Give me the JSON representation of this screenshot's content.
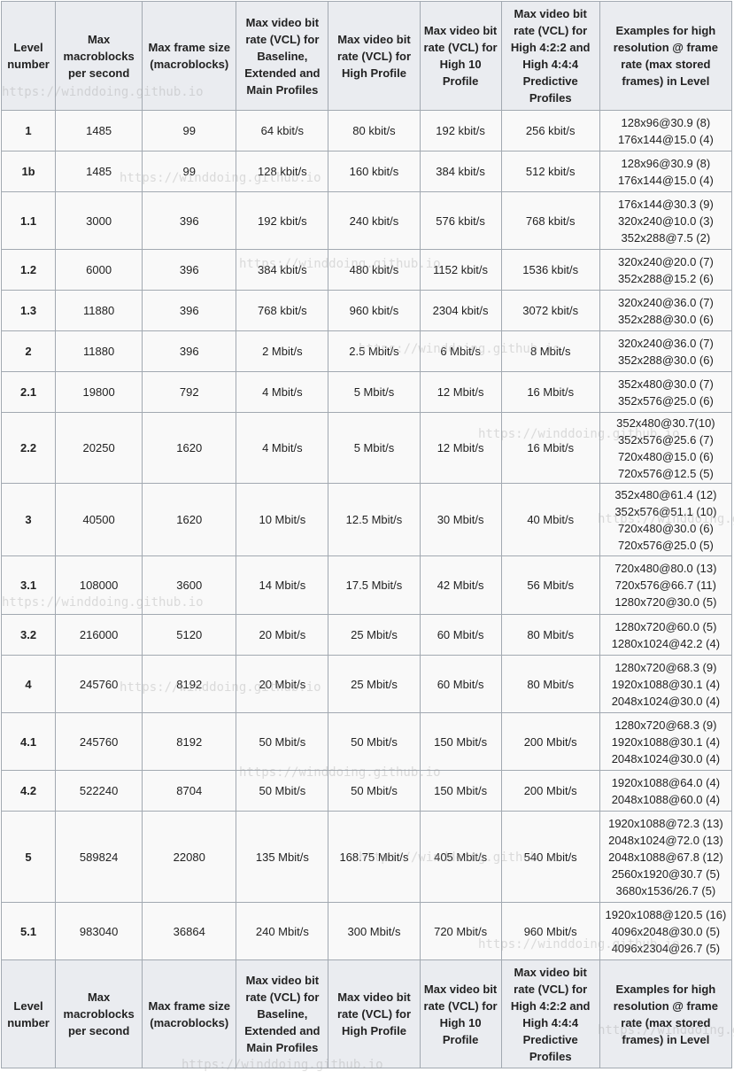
{
  "headers": [
    "Level number",
    "Max macroblocks per second",
    "Max frame size (macroblocks)",
    "Max video bit rate (VCL) for Baseline, Extended and Main Profiles",
    "Max video bit rate (VCL) for High Profile",
    "Max video bit rate (VCL) for High 10 Profile",
    "Max video bit rate (VCL) for High 4:2:2 and High 4:4:4 Predictive Profiles",
    "Examples for high resolution @ frame rate (max stored frames) in Level"
  ],
  "rows": [
    [
      "1",
      "1485",
      "99",
      "64 kbit/s",
      "80 kbit/s",
      "192 kbit/s",
      "256 kbit/s",
      [
        "128x96@30.9 (8)",
        "176x144@15.0 (4)"
      ]
    ],
    [
      "1b",
      "1485",
      "99",
      "128 kbit/s",
      "160 kbit/s",
      "384 kbit/s",
      "512 kbit/s",
      [
        "128x96@30.9 (8)",
        "176x144@15.0 (4)"
      ]
    ],
    [
      "1.1",
      "3000",
      "396",
      "192 kbit/s",
      "240 kbit/s",
      "576 kbit/s",
      "768 kbit/s",
      [
        "176x144@30.3 (9)",
        "320x240@10.0 (3)",
        "352x288@7.5 (2)"
      ]
    ],
    [
      "1.2",
      "6000",
      "396",
      "384 kbit/s",
      "480 kbit/s",
      "1152 kbit/s",
      "1536 kbit/s",
      [
        "320x240@20.0 (7)",
        "352x288@15.2 (6)"
      ]
    ],
    [
      "1.3",
      "11880",
      "396",
      "768 kbit/s",
      "960 kbit/s",
      "2304 kbit/s",
      "3072 kbit/s",
      [
        "320x240@36.0 (7)",
        "352x288@30.0 (6)"
      ]
    ],
    [
      "2",
      "11880",
      "396",
      "2 Mbit/s",
      "2.5 Mbit/s",
      "6 Mbit/s",
      "8 Mbit/s",
      [
        "320x240@36.0 (7)",
        "352x288@30.0 (6)"
      ]
    ],
    [
      "2.1",
      "19800",
      "792",
      "4 Mbit/s",
      "5 Mbit/s",
      "12 Mbit/s",
      "16 Mbit/s",
      [
        "352x480@30.0 (7)",
        "352x576@25.0 (6)"
      ]
    ],
    [
      "2.2",
      "20250",
      "1620",
      "4 Mbit/s",
      "5 Mbit/s",
      "12 Mbit/s",
      "16 Mbit/s",
      [
        "352x480@30.7(10)",
        "352x576@25.6 (7)",
        "720x480@15.0 (6)",
        "720x576@12.5 (5)"
      ]
    ],
    [
      "3",
      "40500",
      "1620",
      "10 Mbit/s",
      "12.5 Mbit/s",
      "30 Mbit/s",
      "40 Mbit/s",
      [
        "352x480@61.4 (12)",
        "352x576@51.1 (10)",
        "720x480@30.0 (6)",
        "720x576@25.0 (5)"
      ]
    ],
    [
      "3.1",
      "108000",
      "3600",
      "14 Mbit/s",
      "17.5 Mbit/s",
      "42 Mbit/s",
      "56 Mbit/s",
      [
        "720x480@80.0 (13)",
        "720x576@66.7 (11)",
        "1280x720@30.0 (5)"
      ]
    ],
    [
      "3.2",
      "216000",
      "5120",
      "20 Mbit/s",
      "25 Mbit/s",
      "60 Mbit/s",
      "80 Mbit/s",
      [
        "1280x720@60.0 (5)",
        "1280x1024@42.2 (4)"
      ]
    ],
    [
      "4",
      "245760",
      "8192",
      "20 Mbit/s",
      "25 Mbit/s",
      "60 Mbit/s",
      "80 Mbit/s",
      [
        "1280x720@68.3 (9)",
        "1920x1088@30.1 (4)",
        "2048x1024@30.0 (4)"
      ]
    ],
    [
      "4.1",
      "245760",
      "8192",
      "50 Mbit/s",
      "50 Mbit/s",
      "150 Mbit/s",
      "200 Mbit/s",
      [
        "1280x720@68.3 (9)",
        "1920x1088@30.1 (4)",
        "2048x1024@30.0 (4)"
      ]
    ],
    [
      "4.2",
      "522240",
      "8704",
      "50 Mbit/s",
      "50 Mbit/s",
      "150 Mbit/s",
      "200 Mbit/s",
      [
        "1920x1088@64.0 (4)",
        "2048x1088@60.0 (4)"
      ]
    ],
    [
      "5",
      "589824",
      "22080",
      "135 Mbit/s",
      "168.75 Mbit/s",
      "405 Mbit/s",
      "540 Mbit/s",
      [
        "1920x1088@72.3 (13)",
        "2048x1024@72.0 (13)",
        "2048x1088@67.8 (12)",
        "2560x1920@30.7 (5)",
        "3680x1536/26.7 (5)"
      ]
    ],
    [
      "5.1",
      "983040",
      "36864",
      "240 Mbit/s",
      "300 Mbit/s",
      "720 Mbit/s",
      "960 Mbit/s",
      [
        "1920x1088@120.5 (16)",
        "4096x2048@30.0 (5)",
        "4096x2304@26.7 (5)"
      ]
    ]
  ],
  "watermark": "https://winddoing.github.io"
}
